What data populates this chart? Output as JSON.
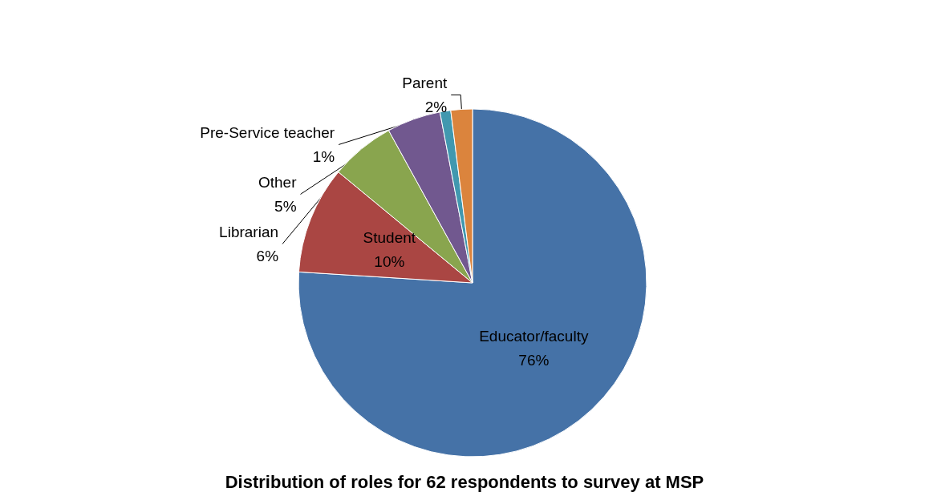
{
  "chart_data": {
    "type": "pie",
    "title": "Distribution of roles for 62 respondents to survey at MSP",
    "categories": [
      "Educator/faculty",
      "Student",
      "Librarian",
      "Other",
      "Pre-Service teacher",
      "Parent"
    ],
    "values": [
      76,
      10,
      6,
      5,
      1,
      2
    ],
    "value_labels": [
      "76%",
      "10%",
      "6%",
      "5%",
      "1%",
      "2%"
    ],
    "colors": [
      "#4572a7",
      "#aa4643",
      "#89a54e",
      "#71588f",
      "#4198af",
      "#db843d"
    ],
    "legend": false
  }
}
